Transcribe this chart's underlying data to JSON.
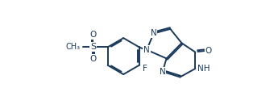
{
  "bg_color": "#ffffff",
  "line_color": "#1a3a5c",
  "lw": 1.4,
  "fs": 7.5,
  "fig_w": 3.4,
  "fig_h": 1.35,
  "dpi": 100,
  "xlim": [
    -0.2,
    7.0
  ],
  "ylim": [
    0.5,
    4.2
  ]
}
